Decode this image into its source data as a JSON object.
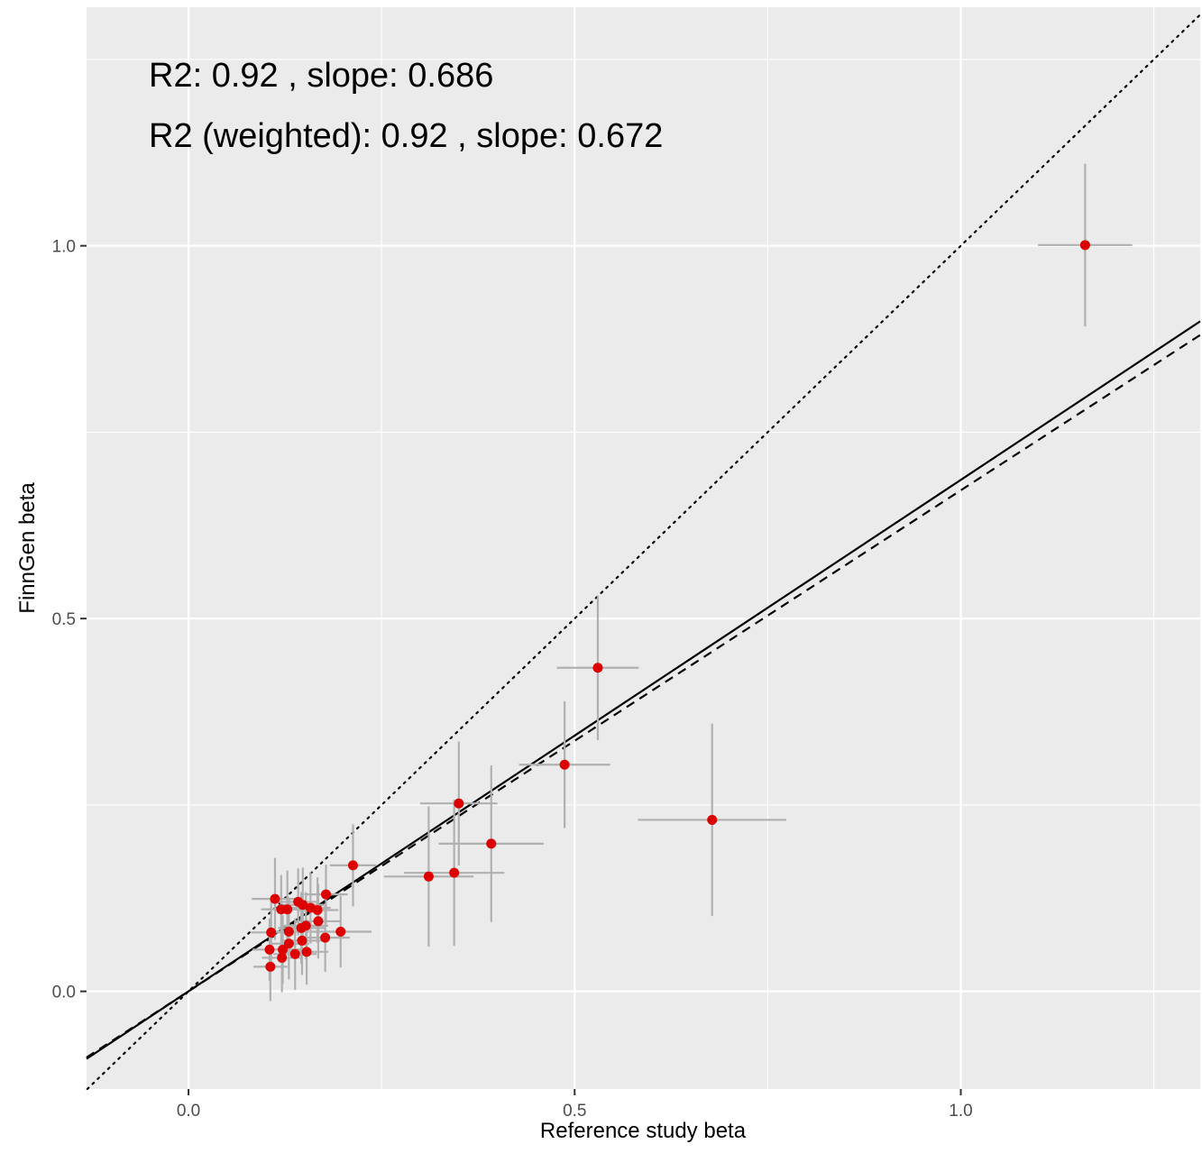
{
  "chart_data": {
    "type": "scatter",
    "xlabel": "Reference study beta",
    "ylabel": "FinnGen beta",
    "xlim": [
      -0.132,
      1.31
    ],
    "ylim": [
      -0.131,
      1.32
    ],
    "x_ticks": [
      0.0,
      0.5,
      1.0
    ],
    "x_tick_labels": [
      "0.0",
      "0.5",
      "1.0"
    ],
    "y_ticks": [
      0.0,
      0.5,
      1.0
    ],
    "y_tick_labels": [
      "0.0",
      "0.5",
      "1.0"
    ],
    "grid": true,
    "annotations": [
      "R2: 0.92 , slope: 0.686",
      "R2 (weighted): 0.92 , slope: 0.672"
    ],
    "lines": [
      {
        "style": "solid",
        "slope": 0.686,
        "intercept": 0
      },
      {
        "style": "dashed",
        "slope": 0.672,
        "intercept": 0
      },
      {
        "style": "dotted",
        "slope": 1,
        "intercept": 0
      }
    ],
    "colors": {
      "point": "#dd0000",
      "errorbar": "#b0b0b0",
      "panel": "#ebebeb",
      "grid": "#ffffff"
    },
    "points": [
      {
        "x": 1.161,
        "y": 1.001,
        "xerr": 0.061,
        "yerr": 0.109
      },
      {
        "x": 0.53,
        "y": 0.434,
        "xerr": 0.053,
        "yerr": 0.097
      },
      {
        "x": 0.487,
        "y": 0.304,
        "xerr": 0.059,
        "yerr": 0.085
      },
      {
        "x": 0.678,
        "y": 0.23,
        "xerr": 0.096,
        "yerr": 0.129
      },
      {
        "x": 0.35,
        "y": 0.252,
        "xerr": 0.05,
        "yerr": 0.083
      },
      {
        "x": 0.392,
        "y": 0.198,
        "xerr": 0.068,
        "yerr": 0.105
      },
      {
        "x": 0.311,
        "y": 0.154,
        "xerr": 0.058,
        "yerr": 0.094
      },
      {
        "x": 0.344,
        "y": 0.159,
        "xerr": 0.065,
        "yerr": 0.098
      },
      {
        "x": 0.213,
        "y": 0.169,
        "xerr": 0.03,
        "yerr": 0.055
      },
      {
        "x": 0.178,
        "y": 0.13,
        "xerr": 0.028,
        "yerr": 0.04
      },
      {
        "x": 0.158,
        "y": 0.112,
        "xerr": 0.026,
        "yerr": 0.048
      },
      {
        "x": 0.142,
        "y": 0.12,
        "xerr": 0.027,
        "yerr": 0.045
      },
      {
        "x": 0.148,
        "y": 0.116,
        "xerr": 0.03,
        "yerr": 0.05
      },
      {
        "x": 0.128,
        "y": 0.11,
        "xerr": 0.028,
        "yerr": 0.052
      },
      {
        "x": 0.12,
        "y": 0.11,
        "xerr": 0.026,
        "yerr": 0.046
      },
      {
        "x": 0.112,
        "y": 0.124,
        "xerr": 0.03,
        "yerr": 0.055
      },
      {
        "x": 0.167,
        "y": 0.109,
        "xerr": 0.027,
        "yerr": 0.044
      },
      {
        "x": 0.168,
        "y": 0.094,
        "xerr": 0.03,
        "yerr": 0.05
      },
      {
        "x": 0.197,
        "y": 0.08,
        "xerr": 0.04,
        "yerr": 0.048
      },
      {
        "x": 0.177,
        "y": 0.072,
        "xerr": 0.032,
        "yerr": 0.046
      },
      {
        "x": 0.152,
        "y": 0.088,
        "xerr": 0.029,
        "yerr": 0.045
      },
      {
        "x": 0.146,
        "y": 0.085,
        "xerr": 0.03,
        "yerr": 0.048
      },
      {
        "x": 0.13,
        "y": 0.08,
        "xerr": 0.026,
        "yerr": 0.046
      },
      {
        "x": 0.107,
        "y": 0.079,
        "xerr": 0.026,
        "yerr": 0.046
      },
      {
        "x": 0.147,
        "y": 0.068,
        "xerr": 0.028,
        "yerr": 0.046
      },
      {
        "x": 0.13,
        "y": 0.064,
        "xerr": 0.026,
        "yerr": 0.048
      },
      {
        "x": 0.122,
        "y": 0.056,
        "xerr": 0.026,
        "yerr": 0.046
      },
      {
        "x": 0.105,
        "y": 0.056,
        "xerr": 0.022,
        "yerr": 0.042
      },
      {
        "x": 0.153,
        "y": 0.053,
        "xerr": 0.028,
        "yerr": 0.044
      },
      {
        "x": 0.138,
        "y": 0.05,
        "xerr": 0.028,
        "yerr": 0.048
      },
      {
        "x": 0.121,
        "y": 0.045,
        "xerr": 0.026,
        "yerr": 0.046
      },
      {
        "x": 0.106,
        "y": 0.033,
        "xerr": 0.022,
        "yerr": 0.046
      }
    ]
  }
}
